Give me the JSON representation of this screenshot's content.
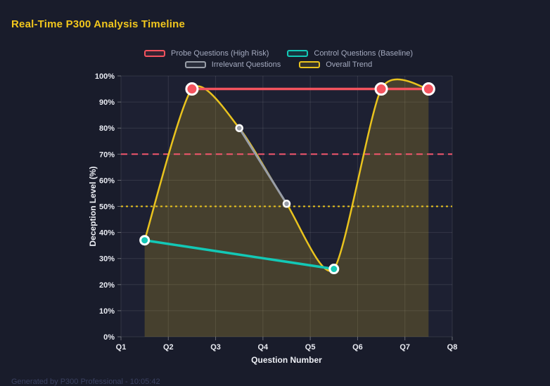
{
  "title": "Real-Time P300 Analysis Timeline",
  "footer": "Generated by P300 Professional - 10:05:42",
  "colors": {
    "page_background": "#191c2b",
    "plot_background": "#1d2032",
    "grid_line": "rgba(255,255,255,0.10)",
    "tick_text": "#e9ebf2",
    "axis_title_text": "#eef0f6",
    "legend_text": "#a4aabf",
    "title_text": "#f2c71d",
    "probe_red": "#f4535e",
    "control_teal": "#13c8b6",
    "irrelevant_gray": "#999ea8",
    "trend_gold": "#e9c31e",
    "threshold_red": "#f2566d"
  },
  "chart_data": {
    "type": "line",
    "title": "Real-Time P300 Analysis Timeline",
    "xlabel": "Question Number",
    "ylabel": "Deception Level (%)",
    "xlim": [
      1,
      8
    ],
    "ylim": [
      0,
      100
    ],
    "grid": true,
    "legend_position": "top",
    "x_ticks": [
      "Q1",
      "Q2",
      "Q3",
      "Q4",
      "Q5",
      "Q6",
      "Q7",
      "Q8"
    ],
    "y_ticks": [
      "0%",
      "10%",
      "20%",
      "30%",
      "40%",
      "50%",
      "60%",
      "70%",
      "80%",
      "90%",
      "100%"
    ],
    "series": [
      {
        "name": "Probe Questions (High Risk)",
        "color": "#f4535e",
        "smooth": false,
        "fill": false,
        "line_width": 3.5,
        "marker_radius": 8,
        "points": [
          {
            "x": 2.5,
            "y": 95
          },
          {
            "x": 6.5,
            "y": 95
          },
          {
            "x": 7.5,
            "y": 95
          }
        ]
      },
      {
        "name": "Control Questions (Baseline)",
        "color": "#13c8b6",
        "smooth": false,
        "fill": false,
        "line_width": 3.5,
        "marker_radius": 6,
        "points": [
          {
            "x": 1.5,
            "y": 37
          },
          {
            "x": 5.5,
            "y": 26
          }
        ]
      },
      {
        "name": "Irrelevant Questions",
        "color": "#999ea8",
        "smooth": false,
        "fill": false,
        "line_width": 3,
        "marker_radius": 4.5,
        "points": [
          {
            "x": 3.5,
            "y": 80
          },
          {
            "x": 4.5,
            "y": 51
          }
        ]
      },
      {
        "name": "Overall Trend",
        "color": "#e9c31e",
        "smooth": true,
        "fill": true,
        "fill_opacity": 0.2,
        "line_width": 2.5,
        "marker_radius": 0,
        "points": [
          {
            "x": 1.5,
            "y": 37
          },
          {
            "x": 2.5,
            "y": 95
          },
          {
            "x": 3.5,
            "y": 80
          },
          {
            "x": 4.5,
            "y": 51
          },
          {
            "x": 5.5,
            "y": 26
          },
          {
            "x": 6.5,
            "y": 95
          },
          {
            "x": 7.5,
            "y": 95
          }
        ]
      }
    ],
    "reference_lines": [
      {
        "value": 70,
        "color": "#f2566d",
        "style": "dashed"
      },
      {
        "value": 50,
        "color": "#e9c31e",
        "style": "dotted"
      }
    ]
  }
}
